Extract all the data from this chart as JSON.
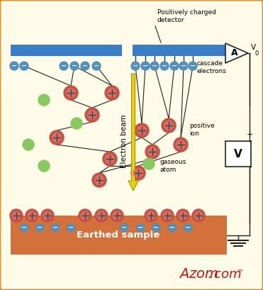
{
  "bg_color": "#FEFCE8",
  "border_color": "#E09030",
  "detector_color": "#3A7EC8",
  "sample_color": "#D4703A",
  "positive_ion_outer": "#C85040",
  "positive_ion_inner": "#D07068",
  "electron_color": "#5090C0",
  "gaseous_atom_color": "#88C860",
  "arrow_color": "#E8D010",
  "arrow_edge": "#B09000",
  "line_color": "#222222",
  "white": "#FFFFFF",
  "title_text": "Earthed sample",
  "detector_label": "Positively charged\ndetector",
  "cascade_label": "cascade\nelectrons",
  "positive_ion_label": "positive\nion",
  "gaseous_atom_label": "gaseous\natom",
  "electron_beam_label": "Electron beam",
  "amp_label": "A",
  "v0_label": "V",
  "v0_sub": "0",
  "voltmeter_label": "V",
  "plus_label": "+",
  "minus_label": "-"
}
